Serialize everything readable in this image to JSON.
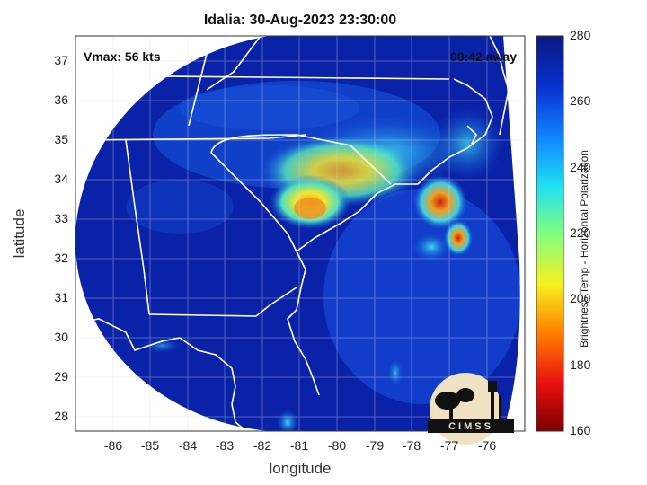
{
  "title": "Idalia: 30-Aug-2023 23:30:00",
  "annotations": {
    "vmax": "Vmax: 56 kts",
    "away": "00:42 away"
  },
  "xlabel": "longitude",
  "ylabel": "latitude",
  "x_ticks": [
    "-86",
    "-85",
    "-84",
    "-83",
    "-82",
    "-81",
    "-80",
    "-79",
    "-78",
    "-77",
    "-76"
  ],
  "y_ticks": [
    "37",
    "36",
    "35",
    "34",
    "33",
    "32",
    "31",
    "30",
    "29",
    "28"
  ],
  "colorbar": {
    "label": "Brightness Temp - Horizontal Polarization",
    "ticks": [
      "280",
      "260",
      "240",
      "220",
      "200",
      "180",
      "160"
    ],
    "min": 160,
    "max": 280
  },
  "logo": {
    "text": "CIMSS"
  },
  "colors": {
    "deep_blue": "#0a22a8",
    "cyan": "#30d0f0",
    "yellow": "#f0e020",
    "red": "#d01010"
  }
}
